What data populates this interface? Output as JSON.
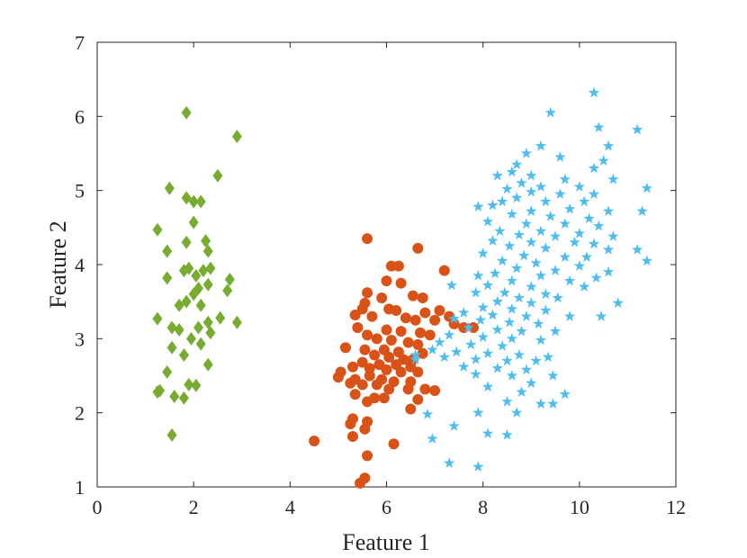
{
  "chart_data": {
    "type": "scatter",
    "title": "",
    "xlabel": "Feature 1",
    "ylabel": "Feature 2",
    "xlim": [
      0,
      12
    ],
    "ylim": [
      1,
      7
    ],
    "xticks": [
      0,
      2,
      4,
      6,
      8,
      10,
      12
    ],
    "yticks": [
      1,
      2,
      3,
      4,
      5,
      6,
      7
    ],
    "grid": false,
    "legend": "none",
    "series": [
      {
        "marker": "diamond",
        "color": "#77ac30",
        "points": [
          [
            1.85,
            6.05
          ],
          [
            2.9,
            5.73
          ],
          [
            2.5,
            5.2
          ],
          [
            1.5,
            5.03
          ],
          [
            1.85,
            4.9
          ],
          [
            2.0,
            4.85
          ],
          [
            2.15,
            4.85
          ],
          [
            1.25,
            4.47
          ],
          [
            2.0,
            4.57
          ],
          [
            2.25,
            4.32
          ],
          [
            1.45,
            4.18
          ],
          [
            1.85,
            4.3
          ],
          [
            2.3,
            4.18
          ],
          [
            2.35,
            3.95
          ],
          [
            1.9,
            3.95
          ],
          [
            1.8,
            3.92
          ],
          [
            2.2,
            3.92
          ],
          [
            2.05,
            3.85
          ],
          [
            1.45,
            3.82
          ],
          [
            2.75,
            3.8
          ],
          [
            2.3,
            3.73
          ],
          [
            2.1,
            3.68
          ],
          [
            2.0,
            3.6
          ],
          [
            2.7,
            3.65
          ],
          [
            1.85,
            3.5
          ],
          [
            1.7,
            3.45
          ],
          [
            2.15,
            3.45
          ],
          [
            1.25,
            3.27
          ],
          [
            2.55,
            3.28
          ],
          [
            2.9,
            3.22
          ],
          [
            2.3,
            3.22
          ],
          [
            1.55,
            3.15
          ],
          [
            1.7,
            3.12
          ],
          [
            2.1,
            3.15
          ],
          [
            2.35,
            3.08
          ],
          [
            1.95,
            3.0
          ],
          [
            2.15,
            2.93
          ],
          [
            1.55,
            2.88
          ],
          [
            1.8,
            2.78
          ],
          [
            2.3,
            2.65
          ],
          [
            1.45,
            2.55
          ],
          [
            1.9,
            2.38
          ],
          [
            2.05,
            2.37
          ],
          [
            1.3,
            2.3
          ],
          [
            1.25,
            2.28
          ],
          [
            1.6,
            2.22
          ],
          [
            1.8,
            2.2
          ],
          [
            1.55,
            1.7
          ]
        ]
      },
      {
        "marker": "circle",
        "color": "#d95319",
        "points": [
          [
            5.6,
            4.35
          ],
          [
            6.65,
            4.22
          ],
          [
            6.1,
            3.98
          ],
          [
            6.25,
            3.98
          ],
          [
            7.2,
            3.92
          ],
          [
            6.0,
            3.78
          ],
          [
            6.3,
            3.75
          ],
          [
            5.6,
            3.62
          ],
          [
            5.55,
            3.48
          ],
          [
            6.55,
            3.58
          ],
          [
            5.9,
            3.55
          ],
          [
            6.75,
            3.55
          ],
          [
            5.5,
            3.4
          ],
          [
            6.05,
            3.4
          ],
          [
            6.2,
            3.38
          ],
          [
            6.8,
            3.35
          ],
          [
            7.1,
            3.38
          ],
          [
            7.3,
            3.3
          ],
          [
            5.35,
            3.32
          ],
          [
            5.7,
            3.3
          ],
          [
            6.4,
            3.28
          ],
          [
            6.6,
            3.25
          ],
          [
            7.0,
            3.25
          ],
          [
            7.4,
            3.2
          ],
          [
            7.6,
            3.15
          ],
          [
            7.8,
            3.15
          ],
          [
            5.4,
            3.15
          ],
          [
            6.0,
            3.12
          ],
          [
            6.3,
            3.1
          ],
          [
            6.7,
            3.08
          ],
          [
            6.9,
            3.05
          ],
          [
            5.6,
            3.05
          ],
          [
            5.8,
            3.0
          ],
          [
            6.1,
            2.98
          ],
          [
            6.45,
            2.95
          ],
          [
            6.65,
            2.92
          ],
          [
            5.15,
            2.88
          ],
          [
            5.55,
            2.85
          ],
          [
            5.95,
            2.85
          ],
          [
            6.25,
            2.82
          ],
          [
            6.75,
            2.8
          ],
          [
            5.75,
            2.78
          ],
          [
            6.05,
            2.75
          ],
          [
            6.35,
            2.72
          ],
          [
            6.55,
            2.72
          ],
          [
            5.5,
            2.68
          ],
          [
            5.85,
            2.65
          ],
          [
            6.2,
            2.65
          ],
          [
            6.5,
            2.62
          ],
          [
            5.05,
            2.55
          ],
          [
            5.3,
            2.62
          ],
          [
            5.65,
            2.6
          ],
          [
            6.0,
            2.58
          ],
          [
            6.3,
            2.55
          ],
          [
            6.65,
            2.55
          ],
          [
            5.0,
            2.48
          ],
          [
            5.35,
            2.45
          ],
          [
            5.65,
            2.5
          ],
          [
            5.9,
            2.45
          ],
          [
            6.15,
            2.42
          ],
          [
            6.5,
            2.42
          ],
          [
            5.25,
            2.4
          ],
          [
            5.5,
            2.38
          ],
          [
            5.8,
            2.38
          ],
          [
            6.05,
            2.32
          ],
          [
            6.45,
            2.32
          ],
          [
            6.8,
            2.32
          ],
          [
            7.0,
            2.3
          ],
          [
            5.35,
            2.25
          ],
          [
            5.75,
            2.2
          ],
          [
            5.95,
            2.2
          ],
          [
            6.65,
            2.18
          ],
          [
            5.6,
            2.15
          ],
          [
            6.5,
            2.05
          ],
          [
            5.3,
            1.92
          ],
          [
            5.6,
            1.88
          ],
          [
            5.25,
            1.85
          ],
          [
            5.55,
            1.78
          ],
          [
            5.3,
            1.68
          ],
          [
            4.5,
            1.62
          ],
          [
            6.15,
            1.58
          ],
          [
            5.6,
            1.42
          ],
          [
            5.55,
            1.12
          ],
          [
            5.45,
            1.05
          ]
        ]
      },
      {
        "marker": "star",
        "color": "#4dbeee",
        "points": [
          [
            10.3,
            6.32
          ],
          [
            9.4,
            6.05
          ],
          [
            10.4,
            5.85
          ],
          [
            11.2,
            5.82
          ],
          [
            9.2,
            5.6
          ],
          [
            10.6,
            5.6
          ],
          [
            8.9,
            5.5
          ],
          [
            9.6,
            5.45
          ],
          [
            10.5,
            5.4
          ],
          [
            8.7,
            5.35
          ],
          [
            10.3,
            5.3
          ],
          [
            8.6,
            5.25
          ],
          [
            9.0,
            5.2
          ],
          [
            8.3,
            5.2
          ],
          [
            9.7,
            5.15
          ],
          [
            10.7,
            5.15
          ],
          [
            8.8,
            5.1
          ],
          [
            9.2,
            5.05
          ],
          [
            10.0,
            5.05
          ],
          [
            8.5,
            5.02
          ],
          [
            11.4,
            5.03
          ],
          [
            9.0,
            4.98
          ],
          [
            9.6,
            4.95
          ],
          [
            10.3,
            4.95
          ],
          [
            8.7,
            4.9
          ],
          [
            8.4,
            4.85
          ],
          [
            9.3,
            4.85
          ],
          [
            10.1,
            4.85
          ],
          [
            7.9,
            4.78
          ],
          [
            8.2,
            4.8
          ],
          [
            9.0,
            4.72
          ],
          [
            9.8,
            4.75
          ],
          [
            10.6,
            4.72
          ],
          [
            11.3,
            4.72
          ],
          [
            8.6,
            4.68
          ],
          [
            9.4,
            4.65
          ],
          [
            10.2,
            4.62
          ],
          [
            8.1,
            4.58
          ],
          [
            8.9,
            4.55
          ],
          [
            9.7,
            4.55
          ],
          [
            10.4,
            4.52
          ],
          [
            8.35,
            4.45
          ],
          [
            9.2,
            4.45
          ],
          [
            10.0,
            4.42
          ],
          [
            8.75,
            4.4
          ],
          [
            9.5,
            4.38
          ],
          [
            10.7,
            4.38
          ],
          [
            8.2,
            4.32
          ],
          [
            9.0,
            4.3
          ],
          [
            9.9,
            4.3
          ],
          [
            10.3,
            4.28
          ],
          [
            8.55,
            4.25
          ],
          [
            9.3,
            4.22
          ],
          [
            10.6,
            4.2
          ],
          [
            11.2,
            4.2
          ],
          [
            8.0,
            4.15
          ],
          [
            8.85,
            4.12
          ],
          [
            9.7,
            4.1
          ],
          [
            10.15,
            4.1
          ],
          [
            8.4,
            4.05
          ],
          [
            9.1,
            4.02
          ],
          [
            11.4,
            4.05
          ],
          [
            10.0,
            3.98
          ],
          [
            8.7,
            3.95
          ],
          [
            9.5,
            3.92
          ],
          [
            10.6,
            3.9
          ],
          [
            7.9,
            3.85
          ],
          [
            8.25,
            3.88
          ],
          [
            9.2,
            3.85
          ],
          [
            10.35,
            3.82
          ],
          [
            8.6,
            3.78
          ],
          [
            9.8,
            3.78
          ],
          [
            7.35,
            3.72
          ],
          [
            8.1,
            3.72
          ],
          [
            9.0,
            3.7
          ],
          [
            10.1,
            3.7
          ],
          [
            7.85,
            3.62
          ],
          [
            8.45,
            3.62
          ],
          [
            9.3,
            3.6
          ],
          [
            8.75,
            3.55
          ],
          [
            9.55,
            3.55
          ],
          [
            8.3,
            3.5
          ],
          [
            9.0,
            3.48
          ],
          [
            10.8,
            3.48
          ],
          [
            8.0,
            3.42
          ],
          [
            8.6,
            3.4
          ],
          [
            9.3,
            3.38
          ],
          [
            7.6,
            3.35
          ],
          [
            8.2,
            3.32
          ],
          [
            8.9,
            3.3
          ],
          [
            9.8,
            3.3
          ],
          [
            10.45,
            3.3
          ],
          [
            7.4,
            3.27
          ],
          [
            7.95,
            3.25
          ],
          [
            8.55,
            3.22
          ],
          [
            9.15,
            3.2
          ],
          [
            7.7,
            3.15
          ],
          [
            8.3,
            3.12
          ],
          [
            8.8,
            3.1
          ],
          [
            9.5,
            3.1
          ],
          [
            7.3,
            3.05
          ],
          [
            8.0,
            3.02
          ],
          [
            8.6,
            3.0
          ],
          [
            9.2,
            2.98
          ],
          [
            7.1,
            2.95
          ],
          [
            7.75,
            2.92
          ],
          [
            8.4,
            2.9
          ],
          [
            6.95,
            2.85
          ],
          [
            7.45,
            2.82
          ],
          [
            8.1,
            2.8
          ],
          [
            8.75,
            2.78
          ],
          [
            9.35,
            2.75
          ],
          [
            6.6,
            2.78
          ],
          [
            7.2,
            2.75
          ],
          [
            7.85,
            2.72
          ],
          [
            8.5,
            2.7
          ],
          [
            9.1,
            2.7
          ],
          [
            7.6,
            2.62
          ],
          [
            8.3,
            2.6
          ],
          [
            8.9,
            2.58
          ],
          [
            7.85,
            2.52
          ],
          [
            8.6,
            2.5
          ],
          [
            9.45,
            2.5
          ],
          [
            9.0,
            2.4
          ],
          [
            8.1,
            2.35
          ],
          [
            8.8,
            2.28
          ],
          [
            9.7,
            2.25
          ],
          [
            8.5,
            2.15
          ],
          [
            9.2,
            2.12
          ],
          [
            9.45,
            2.12
          ],
          [
            6.85,
            1.98
          ],
          [
            7.9,
            2.0
          ],
          [
            8.7,
            2.0
          ],
          [
            7.4,
            1.82
          ],
          [
            8.1,
            1.72
          ],
          [
            8.5,
            1.7
          ],
          [
            6.95,
            1.65
          ],
          [
            7.3,
            1.32
          ],
          [
            7.9,
            1.27
          ],
          [
            6.6,
            2.72
          ]
        ]
      }
    ]
  }
}
